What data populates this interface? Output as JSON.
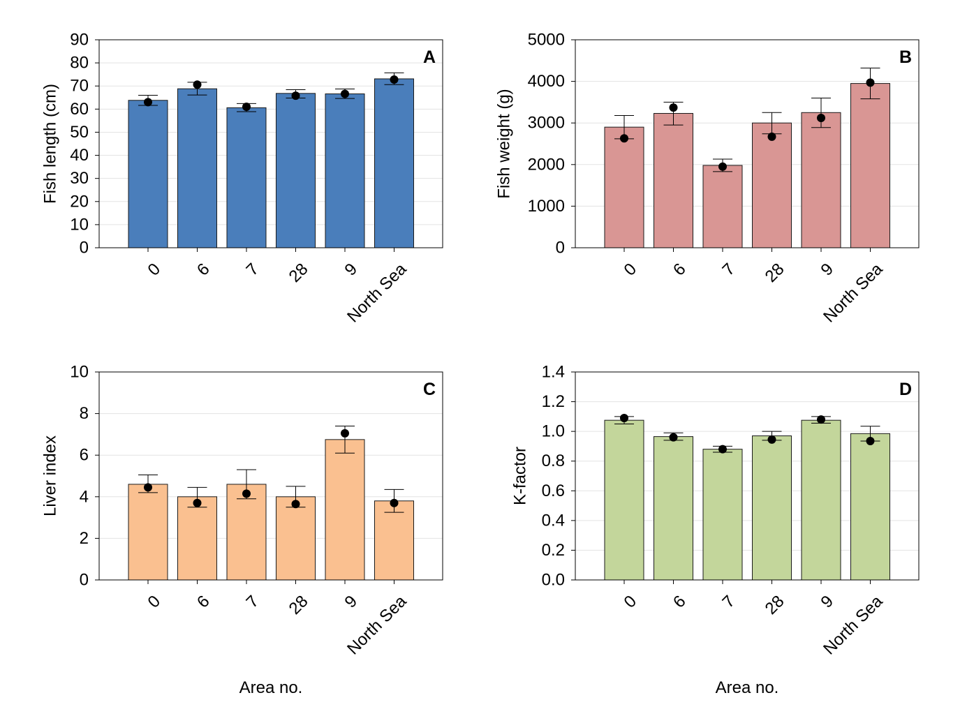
{
  "figure": {
    "xlabel_left": "Area no.",
    "xlabel_right": "Area no."
  },
  "chart_data": [
    {
      "type": "bar",
      "panel": "A",
      "ylabel": "Fish length (cm)",
      "xlabel": "",
      "categories": [
        "0",
        "6",
        "7",
        "28",
        "9",
        "North Sea"
      ],
      "ylim": [
        0,
        90
      ],
      "yticks": [
        0,
        10,
        20,
        30,
        40,
        50,
        60,
        70,
        80,
        90
      ],
      "ytick_labels": [
        "0",
        "10",
        "20",
        "30",
        "40",
        "50",
        "60",
        "70",
        "80",
        "90"
      ],
      "grid": true,
      "bar_color": "#4a7ebb",
      "mean": [
        63.8,
        68.8,
        60.6,
        66.8,
        66.6,
        73.1
      ],
      "error_low": [
        61.6,
        66.1,
        58.9,
        64.8,
        64.6,
        70.6
      ],
      "error_high": [
        66.0,
        71.6,
        62.4,
        68.4,
        68.7,
        75.7
      ],
      "median": [
        63.0,
        70.6,
        61.0,
        65.8,
        66.6,
        72.8
      ]
    },
    {
      "type": "bar",
      "panel": "B",
      "ylabel": "Fish weight (g)",
      "xlabel": "",
      "categories": [
        "0",
        "6",
        "7",
        "28",
        "9",
        "North Sea"
      ],
      "ylim": [
        0,
        5000
      ],
      "yticks": [
        0,
        1000,
        2000,
        3000,
        4000,
        5000
      ],
      "ytick_labels": [
        "0",
        "1000",
        "2000",
        "3000",
        "4000",
        "5000"
      ],
      "grid": true,
      "bar_color": "#d99694",
      "mean": [
        2900,
        3230,
        1980,
        3000,
        3250,
        3950
      ],
      "error_low": [
        2620,
        2950,
        1830,
        2740,
        2890,
        3580
      ],
      "error_high": [
        3180,
        3500,
        2130,
        3250,
        3600,
        4320
      ],
      "median": [
        2630,
        3370,
        1950,
        2670,
        3120,
        3970
      ]
    },
    {
      "type": "bar",
      "panel": "C",
      "ylabel": "Liver index",
      "xlabel": "",
      "categories": [
        "0",
        "6",
        "7",
        "28",
        "9",
        "North Sea"
      ],
      "ylim": [
        0,
        10
      ],
      "yticks": [
        0,
        2,
        4,
        6,
        8,
        10
      ],
      "ytick_labels": [
        "0",
        "2",
        "4",
        "6",
        "8",
        "10"
      ],
      "grid": true,
      "bar_color": "#fac090",
      "mean": [
        4.6,
        4.0,
        4.6,
        4.0,
        6.75,
        3.8
      ],
      "error_low": [
        4.2,
        3.5,
        3.9,
        3.5,
        6.1,
        3.25
      ],
      "error_high": [
        5.05,
        4.45,
        5.3,
        4.5,
        7.4,
        4.35
      ],
      "median": [
        4.45,
        3.7,
        4.15,
        3.65,
        7.05,
        3.7
      ]
    },
    {
      "type": "bar",
      "panel": "D",
      "ylabel": "K-factor",
      "xlabel": "",
      "categories": [
        "0",
        "6",
        "7",
        "28",
        "9",
        "North Sea"
      ],
      "ylim": [
        0,
        1.4
      ],
      "yticks": [
        0,
        0.2,
        0.4,
        0.6,
        0.8,
        1.0,
        1.2,
        1.4
      ],
      "ytick_labels": [
        "0.0",
        "0.2",
        "0.4",
        "0.6",
        "0.8",
        "1.0",
        "1.2",
        "1.4"
      ],
      "grid": true,
      "bar_color": "#c3d69b",
      "mean": [
        1.075,
        0.965,
        0.88,
        0.97,
        1.075,
        0.985
      ],
      "error_low": [
        1.05,
        0.94,
        0.86,
        0.94,
        1.055,
        0.935
      ],
      "error_high": [
        1.1,
        0.99,
        0.9,
        1.0,
        1.1,
        1.035
      ],
      "median": [
        1.09,
        0.96,
        0.88,
        0.945,
        1.08,
        0.935
      ]
    }
  ]
}
